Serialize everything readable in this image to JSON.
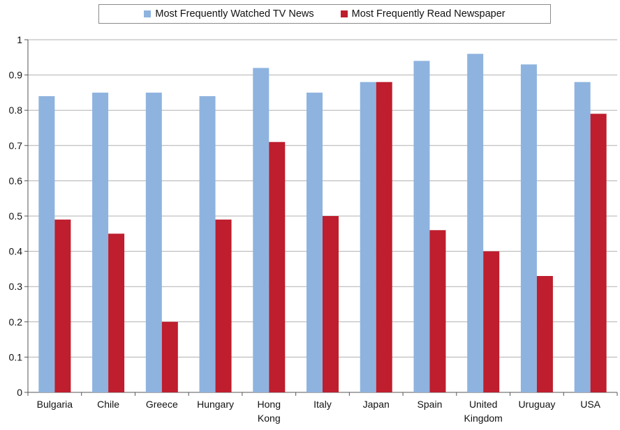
{
  "chart_data": {
    "type": "bar",
    "title": "",
    "xlabel": "",
    "ylabel": "",
    "categories": [
      [
        "Bulgaria"
      ],
      [
        "Chile"
      ],
      [
        "Greece"
      ],
      [
        "Hungary"
      ],
      [
        "Hong",
        "Kong"
      ],
      [
        "Italy"
      ],
      [
        "Japan"
      ],
      [
        "Spain"
      ],
      [
        "United",
        "Kingdom"
      ],
      [
        "Uruguay"
      ],
      [
        "USA"
      ]
    ],
    "series": [
      {
        "name": "Most Frequently Watched TV News",
        "color": "#8eb3df",
        "values": [
          0.84,
          0.85,
          0.85,
          0.84,
          0.92,
          0.85,
          0.88,
          0.94,
          0.96,
          0.93,
          0.88
        ]
      },
      {
        "name": "Most Frequently Read Newspaper",
        "color": "#be1e2d",
        "values": [
          0.49,
          0.45,
          0.2,
          0.49,
          0.71,
          0.5,
          0.88,
          0.46,
          0.4,
          0.33,
          0.79
        ]
      }
    ],
    "ylim": [
      0,
      1
    ],
    "yticks": [
      "0",
      "0.1",
      "0.2",
      "0.3",
      "0.4",
      "0.5",
      "0.6",
      "0.7",
      "0.8",
      "0.9",
      "1"
    ],
    "grid": true,
    "legend_position": "top"
  }
}
